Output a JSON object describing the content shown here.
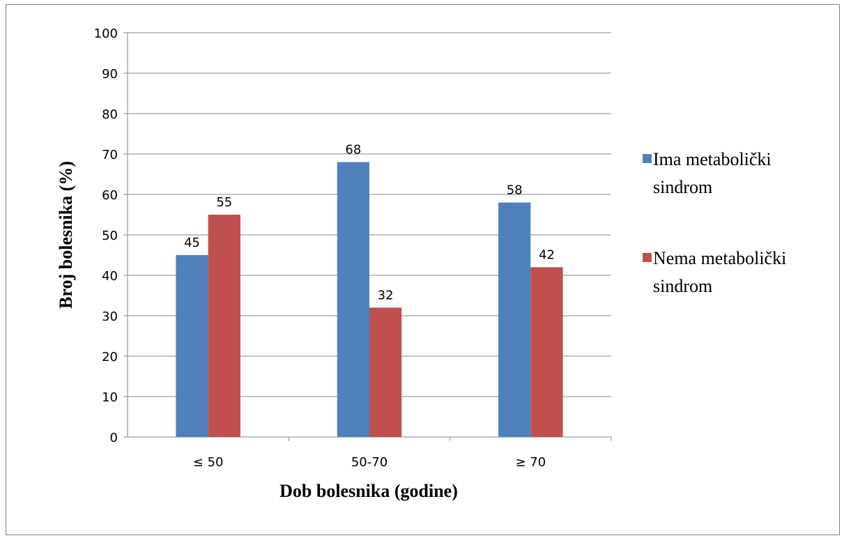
{
  "chart_data": {
    "type": "bar",
    "title": "",
    "xlabel": "Dob bolesnika (godine)",
    "ylabel": "Broj bolesnika (%)",
    "categories": [
      "≤ 50",
      "50-70",
      "≥ 70"
    ],
    "series": [
      {
        "name": "Ima metabolički sindrom",
        "values": [
          45,
          68,
          58
        ],
        "color": "#4f81bd"
      },
      {
        "name": "Nema metabolički sindrom",
        "values": [
          55,
          32,
          42
        ],
        "color": "#c0504d"
      }
    ],
    "ylim": [
      0,
      100
    ],
    "yticks": [
      0,
      10,
      20,
      30,
      40,
      50,
      60,
      70,
      80,
      90,
      100
    ],
    "grid": true,
    "legend_position": "right",
    "data_labels": true
  },
  "legend": {
    "items": [
      {
        "line1": "Ima metabolički",
        "line2": "sindrom",
        "color": "#4f81bd"
      },
      {
        "line1": "Nema metabolički",
        "line2": "sindrom",
        "color": "#c0504d"
      }
    ]
  }
}
